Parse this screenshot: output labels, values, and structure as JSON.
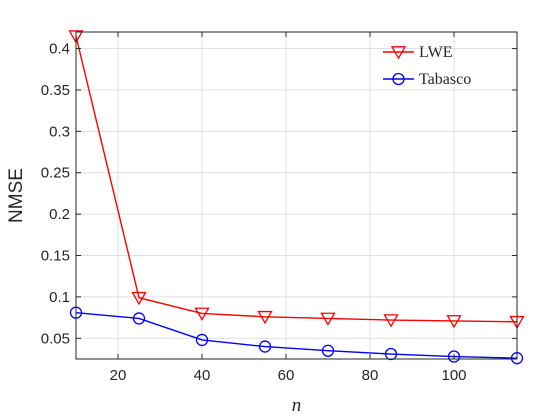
{
  "chart_data": {
    "type": "line",
    "xlabel": "n",
    "ylabel": "NMSE",
    "xlim": [
      10,
      115
    ],
    "ylim": [
      0.025,
      0.42
    ],
    "xticks": [
      20,
      40,
      60,
      80,
      100
    ],
    "yticks": [
      0.05,
      0.1,
      0.15,
      0.2,
      0.25,
      0.3,
      0.35,
      0.4
    ],
    "ytick_labels": [
      "0.05",
      "0.1",
      "0.15",
      "0.2",
      "0.25",
      "0.3",
      "0.35",
      "0.4"
    ],
    "grid": true,
    "legend_position": "top-right",
    "x": [
      10,
      25,
      40,
      55,
      70,
      85,
      100,
      115
    ],
    "series": [
      {
        "name": "LWE",
        "color": "#ff0000",
        "marker": "triangle-down",
        "values": [
          0.415,
          0.099,
          0.08,
          0.076,
          0.074,
          0.072,
          0.071,
          0.07
        ]
      },
      {
        "name": "Tabasco",
        "color": "#0000ff",
        "marker": "circle",
        "values": [
          0.081,
          0.074,
          0.048,
          0.04,
          0.035,
          0.031,
          0.028,
          0.026
        ]
      }
    ]
  }
}
